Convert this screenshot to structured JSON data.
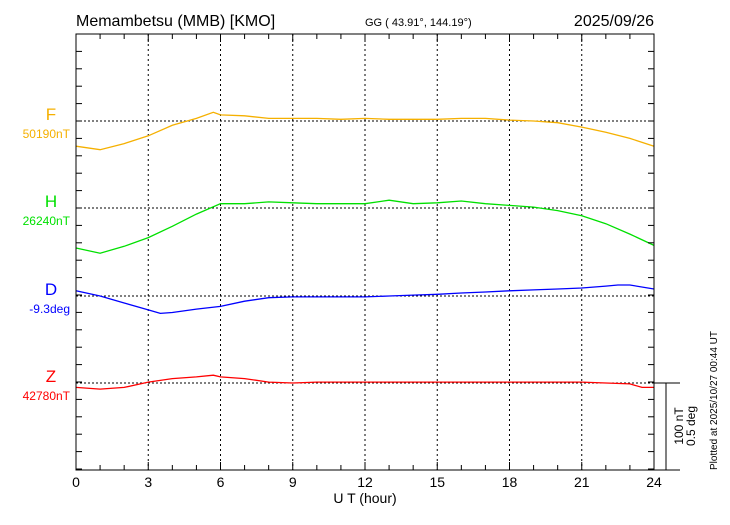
{
  "header": {
    "station": "Memambetsu (MMB)  [KMO]",
    "coords": "GG ( 43.91°, 144.19°)",
    "date": "2025/09/26"
  },
  "footer": {
    "plotted": "Plotted at 2025/10/27 00:44 UT",
    "scale_nt": "100 nT",
    "scale_deg": "0.5 deg"
  },
  "chart_data": {
    "type": "line",
    "xlabel": "U T (hour)",
    "xlim": [
      0,
      24
    ],
    "xticks": [
      "0",
      "3",
      "6",
      "9",
      "12",
      "15",
      "18",
      "21",
      "24"
    ],
    "grid": true,
    "series": [
      {
        "name": "F",
        "baseline_label": "50190nT",
        "unit": "nT",
        "color": "#f5b000",
        "x": [
          0,
          1,
          2,
          3,
          4,
          5,
          5.7,
          6,
          7,
          8,
          9,
          10,
          11,
          12,
          13,
          14,
          15,
          16,
          17,
          18,
          19,
          20,
          21,
          22,
          23,
          24
        ],
        "y": [
          -29,
          -33,
          -26,
          -17,
          -5,
          3,
          10,
          7,
          6,
          3,
          3,
          3,
          2,
          3,
          2,
          2,
          2,
          3,
          3,
          1,
          0,
          -2,
          -7,
          -13,
          -20,
          -29
        ]
      },
      {
        "name": "H",
        "baseline_label": "26240nT",
        "unit": "nT",
        "color": "#00e000",
        "x": [
          0,
          1,
          2,
          3,
          4,
          5,
          6,
          7,
          8,
          9,
          10,
          11,
          12,
          13,
          14,
          15,
          16,
          17,
          18,
          19,
          20,
          21,
          22,
          23,
          24
        ],
        "y": [
          -46,
          -52,
          -44,
          -34,
          -21,
          -7,
          5,
          5,
          7,
          6,
          5,
          5,
          5,
          9,
          5,
          6,
          8,
          5,
          3,
          1,
          -3,
          -9,
          -18,
          -30,
          -43
        ]
      },
      {
        "name": "D",
        "baseline_label": "-9.3deg",
        "unit": "deg",
        "color": "#0000ff",
        "x": [
          0,
          1,
          2,
          3,
          3.5,
          4,
          5,
          6,
          7,
          8,
          9,
          10,
          11,
          12,
          13,
          14,
          15,
          16,
          17,
          18,
          19,
          20,
          21,
          22,
          22.5,
          23,
          24
        ],
        "y": [
          0.03,
          0,
          -0.04,
          -0.08,
          -0.1,
          -0.095,
          -0.075,
          -0.06,
          -0.03,
          -0.01,
          -0.005,
          -0.005,
          -0.005,
          -0.005,
          0,
          0.005,
          0.01,
          0.017,
          0.023,
          0.03,
          0.035,
          0.04,
          0.046,
          0.057,
          0.063,
          0.063,
          0.04
        ]
      },
      {
        "name": "Z",
        "baseline_label": "42780nT",
        "unit": "nT",
        "color": "#ff0000",
        "x": [
          0,
          1,
          2,
          3,
          4,
          5,
          5.7,
          6,
          7,
          8,
          9,
          10,
          12,
          14,
          16,
          18,
          20,
          21,
          22,
          23,
          23.5,
          24
        ],
        "y": [
          -5,
          -7,
          -5,
          1,
          5,
          7,
          9,
          7,
          5,
          1,
          0,
          1,
          1,
          1,
          1,
          1,
          1,
          1,
          0,
          -1,
          -5,
          -5
        ]
      }
    ]
  }
}
